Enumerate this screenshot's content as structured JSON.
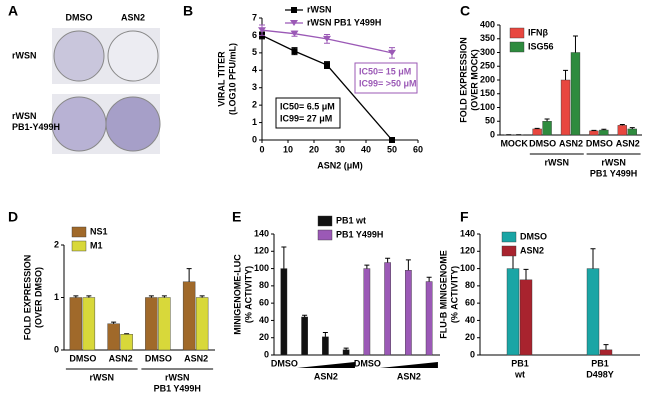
{
  "chart_data": [
    {
      "type": "image",
      "panel_label": "A",
      "column_labels": [
        "DMSO",
        "ASN2"
      ],
      "row_labels": [
        [
          "rWSN"
        ],
        [
          "rWSN",
          "PB1-Y499H"
        ]
      ]
    },
    {
      "type": "line",
      "panel_label": "B",
      "x": [
        0,
        12.5,
        25,
        50
      ],
      "xlim": [
        0,
        60
      ],
      "xticks": [
        0,
        10,
        20,
        30,
        40,
        50,
        60
      ],
      "ylim": [
        0,
        7
      ],
      "yticks": [
        0,
        1,
        2,
        3,
        4,
        5,
        6,
        7
      ],
      "x_label": "ASN2 (μM)",
      "y_label": [
        "VIRAL TITER",
        "(LOG10 PFU/mL)"
      ],
      "series": [
        {
          "name": "rWSN",
          "color": "#000000",
          "marker": "square",
          "values": [
            6.0,
            5.1,
            4.3,
            0.0
          ],
          "errors": [
            0.2,
            0.2,
            0.2,
            0.1
          ]
        },
        {
          "name": "rWSN PB1 Y499H",
          "color": "#9b59b6",
          "marker": "triangle",
          "values": [
            6.3,
            6.1,
            5.8,
            5.0
          ],
          "errors": [
            0.3,
            0.15,
            0.25,
            0.3
          ]
        }
      ],
      "annotations": [
        {
          "lines": [
            "IC50= 15 μM",
            "IC99= >50 μM"
          ],
          "color": "#9b59b6"
        },
        {
          "lines": [
            "IC50= 6.5 μM",
            "IC99= 27 μM"
          ],
          "color": "#000000"
        }
      ]
    },
    {
      "type": "bar",
      "panel_label": "C",
      "categories": [
        "MOCK",
        "DMSO",
        "ASN2",
        "DMSO",
        "ASN2"
      ],
      "ylim": [
        0,
        400
      ],
      "yticks": [
        0,
        50,
        100,
        150,
        200,
        250,
        300,
        350,
        400
      ],
      "y_label": [
        "FOLD EXPRESSION",
        "(OVER MOCK)"
      ],
      "series": [
        {
          "name": "IFNβ",
          "color": "#e8473f",
          "values": [
            1,
            22,
            200,
            15,
            35
          ],
          "errors": [
            0,
            2,
            35,
            2,
            3
          ]
        },
        {
          "name": "ISG56",
          "color": "#2e8b3e",
          "values": [
            1,
            50,
            300,
            18,
            22
          ],
          "errors": [
            0,
            8,
            60,
            3,
            5
          ]
        }
      ],
      "group_labels": [
        [
          "rWSN"
        ],
        [
          "rWSN",
          "PB1 Y499H"
        ]
      ]
    },
    {
      "type": "bar",
      "panel_label": "D",
      "categories": [
        "DMSO",
        "ASN2",
        "DMSO",
        "ASN2"
      ],
      "ylim": [
        0,
        2
      ],
      "yticks": [
        0,
        1,
        2
      ],
      "y_label": [
        "FOLD EXPRESSION",
        "(OVER DMSO)"
      ],
      "series": [
        {
          "name": "NS1",
          "color": "#a0692a",
          "values": [
            1.0,
            0.5,
            1.0,
            1.3
          ],
          "errors": [
            0.03,
            0.03,
            0.03,
            0.25
          ]
        },
        {
          "name": "M1",
          "color": "#d8d83a",
          "values": [
            1.0,
            0.3,
            1.0,
            1.0
          ],
          "errors": [
            0.03,
            0.01,
            0.03,
            0.03
          ]
        }
      ],
      "group_labels": [
        [
          "rWSN"
        ],
        [
          "rWSN",
          "PB1 Y499H"
        ]
      ]
    },
    {
      "type": "bar",
      "panel_label": "E",
      "categories": [
        "DMSO",
        null,
        null,
        null,
        "DMSO",
        null,
        null,
        null
      ],
      "ylim": [
        0,
        140
      ],
      "yticks": [
        0,
        20,
        40,
        60,
        80,
        100,
        120,
        140
      ],
      "y_label": [
        "MINIGENOME-LUC",
        "(% ACTIVITY)"
      ],
      "series": [
        {
          "name": "PB1 wt",
          "color": "#111111",
          "values": [
            100,
            44,
            21,
            6,
            null,
            null,
            null,
            null
          ],
          "errors": [
            25,
            2,
            5,
            2,
            null,
            null,
            null,
            null
          ]
        },
        {
          "name": "PB1 Y499H",
          "color": "#9b59b6",
          "values": [
            null,
            null,
            null,
            null,
            100,
            107,
            98,
            85
          ],
          "errors": [
            null,
            null,
            null,
            null,
            4,
            5,
            12,
            5
          ]
        }
      ],
      "group_labels": [
        [
          "ASN2"
        ],
        [
          "ASN2"
        ]
      ]
    },
    {
      "type": "bar",
      "panel_label": "F",
      "categories": [
        [
          "PB1",
          "wt"
        ],
        [
          "PB1",
          "D498Y"
        ]
      ],
      "ylim": [
        0,
        140
      ],
      "yticks": [
        0,
        20,
        40,
        60,
        80,
        100,
        120,
        140
      ],
      "y_label": [
        "FLU-B MINIGENOME",
        "(% ACTIVITY)"
      ],
      "series": [
        {
          "name": "DMSO",
          "color": "#1aa5a5",
          "values": [
            100,
            100
          ],
          "errors": [
            17,
            23
          ]
        },
        {
          "name": "ASN2",
          "color": "#a8232e",
          "values": [
            87,
            6
          ],
          "errors": [
            12,
            6
          ]
        }
      ]
    }
  ]
}
